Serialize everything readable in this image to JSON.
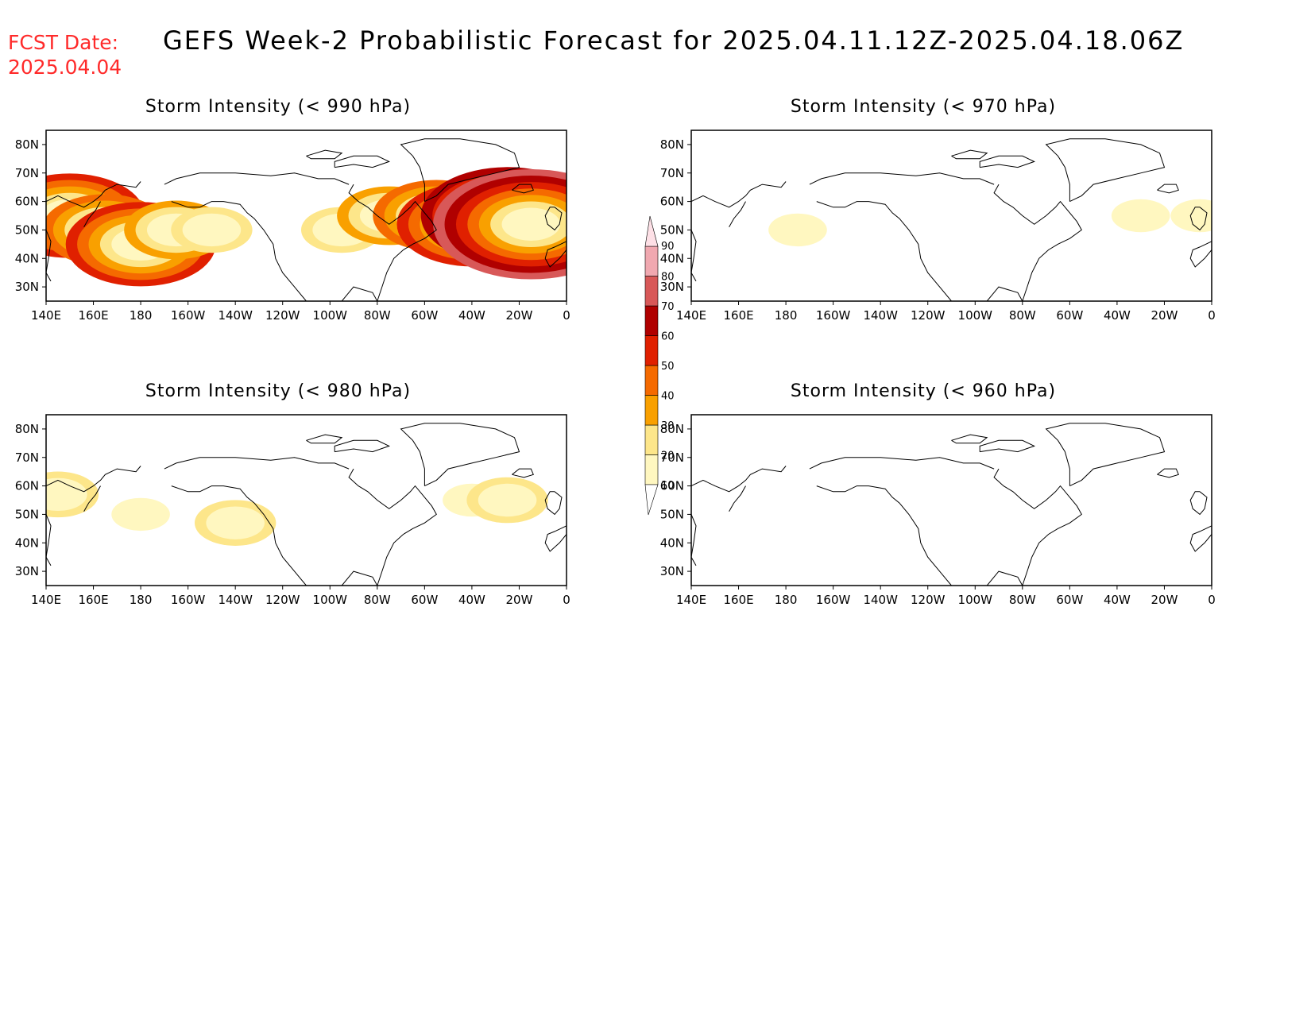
{
  "header": {
    "fcst_label": "FCST Date:",
    "fcst_date": "2025.04.04",
    "title": "GEFS Week-2 Probabilistic Forecast for 2025.04.11.12Z-2025.04.18.06Z"
  },
  "axes": {
    "lat_ticks": [
      "80N",
      "70N",
      "60N",
      "50N",
      "40N",
      "30N"
    ],
    "lon_ticks": [
      "140E",
      "160E",
      "180",
      "160W",
      "140W",
      "120W",
      "100W",
      "80W",
      "60W",
      "40W",
      "20W",
      "0"
    ]
  },
  "panels": [
    {
      "title": "Storm Intensity (< 990 hPa)"
    },
    {
      "title": "Storm Intensity (< 970 hPa)"
    },
    {
      "title": "Storm Intensity (< 980 hPa)"
    },
    {
      "title": "Storm Intensity (< 960 hPa)"
    }
  ],
  "colorbar": {
    "levels": [
      "10",
      "20",
      "30",
      "40",
      "50",
      "60",
      "70",
      "80",
      "90"
    ],
    "colors": [
      "#fff7c0",
      "#fde68a",
      "#f9a000",
      "#f56a00",
      "#e02000",
      "#b00000",
      "#d85858",
      "#f0a8b0",
      "#fde0e6"
    ]
  },
  "chart_data": {
    "type": "heatmap",
    "units": "probability (%)",
    "lon_range": [
      140,
      360
    ],
    "lat_range": [
      25,
      85
    ],
    "panels": [
      {
        "title": "Storm Intensity (< 990 hPa)",
        "blobs": [
          {
            "lon": 150,
            "lat": 55,
            "value": 50
          },
          {
            "lon": 165,
            "lat": 50,
            "value": 40
          },
          {
            "lon": 180,
            "lat": 45,
            "value": 50
          },
          {
            "lon": 195,
            "lat": 50,
            "value": 30
          },
          {
            "lon": 210,
            "lat": 50,
            "value": 20
          },
          {
            "lon": 265,
            "lat": 50,
            "value": 20
          },
          {
            "lon": 285,
            "lat": 55,
            "value": 30
          },
          {
            "lon": 305,
            "lat": 55,
            "value": 40
          },
          {
            "lon": 320,
            "lat": 52,
            "value": 50
          },
          {
            "lon": 335,
            "lat": 55,
            "value": 60
          },
          {
            "lon": 345,
            "lat": 52,
            "value": 70
          }
        ]
      },
      {
        "title": "Storm Intensity (< 970 hPa)",
        "blobs": [
          {
            "lon": 185,
            "lat": 50,
            "value": 10
          },
          {
            "lon": 330,
            "lat": 55,
            "value": 10
          },
          {
            "lon": 355,
            "lat": 55,
            "value": 10
          }
        ]
      },
      {
        "title": "Storm Intensity (< 980 hPa)",
        "blobs": [
          {
            "lon": 145,
            "lat": 57,
            "value": 20
          },
          {
            "lon": 180,
            "lat": 50,
            "value": 10
          },
          {
            "lon": 220,
            "lat": 47,
            "value": 20
          },
          {
            "lon": 320,
            "lat": 55,
            "value": 10
          },
          {
            "lon": 335,
            "lat": 55,
            "value": 20
          }
        ]
      },
      {
        "title": "Storm Intensity (< 960 hPa)",
        "blobs": []
      }
    ]
  }
}
